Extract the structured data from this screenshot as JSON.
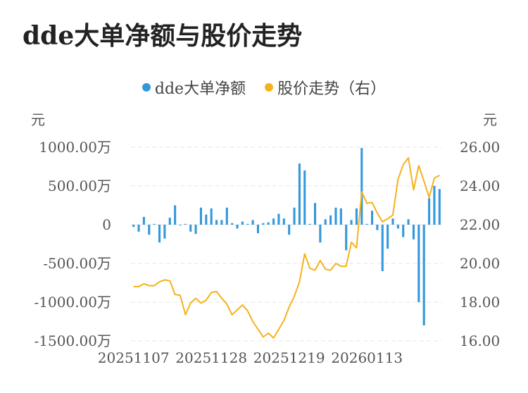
{
  "title": "dde大单净额与股价走势",
  "legend": [
    {
      "name": "dde大单净额",
      "color": "#3398DB"
    },
    {
      "name": "股价走势（右）",
      "color": "#F5B21A"
    }
  ],
  "chart_data": {
    "type": "bar+line",
    "title": "dde大单净额与股价走势",
    "left_axis": {
      "unit_label": "元",
      "ticks": [
        1000,
        500,
        0,
        -500,
        -1000,
        -1500
      ],
      "tick_labels": [
        "1000.00万",
        "500.00万",
        "0",
        "-500.00万",
        "-1000.00万",
        "-1500.00万"
      ],
      "range": [
        -1500,
        1000
      ]
    },
    "right_axis": {
      "unit_label": "元",
      "ticks": [
        26,
        24,
        22,
        20,
        18,
        16
      ],
      "tick_labels": [
        "26.00",
        "24.00",
        "22.00",
        "20.00",
        "18.00",
        "16.00"
      ],
      "range": [
        16,
        26
      ]
    },
    "x_tick_labels": [
      {
        "index": 0,
        "label": "20251107"
      },
      {
        "index": 15,
        "label": "20251128"
      },
      {
        "index": 30,
        "label": "20251219"
      },
      {
        "index": 45,
        "label": "20260113"
      }
    ],
    "series": [
      {
        "name": "dde大单净额",
        "type": "bar",
        "color": "#3398DB",
        "values": [
          -30,
          -90,
          100,
          -130,
          10,
          -230,
          -180,
          90,
          250,
          -10,
          10,
          -90,
          -120,
          220,
          130,
          210,
          60,
          60,
          220,
          20,
          -50,
          40,
          10,
          60,
          -110,
          20,
          30,
          80,
          140,
          80,
          -130,
          220,
          790,
          700,
          10,
          280,
          -230,
          70,
          120,
          220,
          210,
          -330,
          60,
          210,
          990,
          10,
          180,
          -70,
          -600,
          -310,
          80,
          -50,
          -160,
          70,
          -190,
          -1000,
          -1300,
          340,
          500,
          460
        ],
        "unit": "万元"
      },
      {
        "name": "股价走势（右）",
        "type": "line",
        "color": "#F5B21A",
        "values": [
          18.8,
          18.8,
          18.95,
          18.85,
          18.85,
          19.05,
          19.15,
          19.1,
          18.4,
          18.35,
          17.35,
          17.95,
          18.2,
          17.95,
          18.1,
          18.5,
          18.55,
          18.2,
          17.9,
          17.35,
          17.6,
          17.85,
          17.55,
          17.0,
          16.6,
          16.2,
          16.4,
          16.15,
          16.6,
          17.05,
          17.75,
          18.3,
          19.05,
          20.5,
          19.75,
          19.65,
          20.15,
          19.7,
          19.65,
          20.0,
          19.85,
          19.85,
          21.1,
          20.8,
          23.7,
          23.1,
          23.15,
          22.6,
          22.15,
          22.3,
          22.5,
          24.35,
          25.1,
          25.45,
          23.8,
          25.05,
          24.25,
          23.4,
          24.4,
          24.55
        ]
      }
    ],
    "grid": true,
    "legend_position": "top-center"
  }
}
